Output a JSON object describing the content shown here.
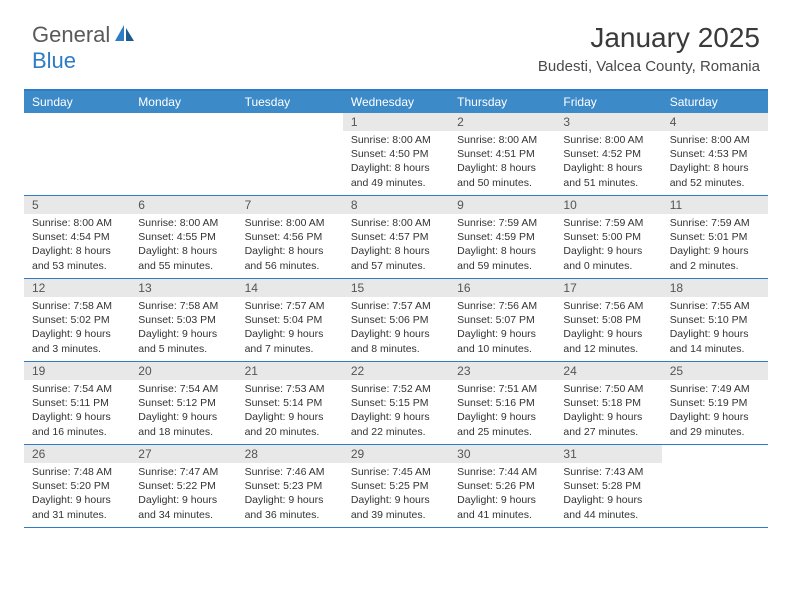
{
  "brand": {
    "part1": "General",
    "part2": "Blue",
    "color_text": "#5a5a5a",
    "color_blue": "#2d7cc5"
  },
  "title": "January 2025",
  "location": "Budesti, Valcea County, Romania",
  "colors": {
    "header_bg": "#3d8ac9",
    "border": "#2d7cc5",
    "daynum_bg": "#e8e8e8",
    "text": "#333333"
  },
  "weekdays": [
    "Sunday",
    "Monday",
    "Tuesday",
    "Wednesday",
    "Thursday",
    "Friday",
    "Saturday"
  ],
  "weeks": [
    [
      {
        "day": "",
        "sunrise": "",
        "sunset": "",
        "daylight1": "",
        "daylight2": ""
      },
      {
        "day": "",
        "sunrise": "",
        "sunset": "",
        "daylight1": "",
        "daylight2": ""
      },
      {
        "day": "",
        "sunrise": "",
        "sunset": "",
        "daylight1": "",
        "daylight2": ""
      },
      {
        "day": "1",
        "sunrise": "Sunrise: 8:00 AM",
        "sunset": "Sunset: 4:50 PM",
        "daylight1": "Daylight: 8 hours",
        "daylight2": "and 49 minutes."
      },
      {
        "day": "2",
        "sunrise": "Sunrise: 8:00 AM",
        "sunset": "Sunset: 4:51 PM",
        "daylight1": "Daylight: 8 hours",
        "daylight2": "and 50 minutes."
      },
      {
        "day": "3",
        "sunrise": "Sunrise: 8:00 AM",
        "sunset": "Sunset: 4:52 PM",
        "daylight1": "Daylight: 8 hours",
        "daylight2": "and 51 minutes."
      },
      {
        "day": "4",
        "sunrise": "Sunrise: 8:00 AM",
        "sunset": "Sunset: 4:53 PM",
        "daylight1": "Daylight: 8 hours",
        "daylight2": "and 52 minutes."
      }
    ],
    [
      {
        "day": "5",
        "sunrise": "Sunrise: 8:00 AM",
        "sunset": "Sunset: 4:54 PM",
        "daylight1": "Daylight: 8 hours",
        "daylight2": "and 53 minutes."
      },
      {
        "day": "6",
        "sunrise": "Sunrise: 8:00 AM",
        "sunset": "Sunset: 4:55 PM",
        "daylight1": "Daylight: 8 hours",
        "daylight2": "and 55 minutes."
      },
      {
        "day": "7",
        "sunrise": "Sunrise: 8:00 AM",
        "sunset": "Sunset: 4:56 PM",
        "daylight1": "Daylight: 8 hours",
        "daylight2": "and 56 minutes."
      },
      {
        "day": "8",
        "sunrise": "Sunrise: 8:00 AM",
        "sunset": "Sunset: 4:57 PM",
        "daylight1": "Daylight: 8 hours",
        "daylight2": "and 57 minutes."
      },
      {
        "day": "9",
        "sunrise": "Sunrise: 7:59 AM",
        "sunset": "Sunset: 4:59 PM",
        "daylight1": "Daylight: 8 hours",
        "daylight2": "and 59 minutes."
      },
      {
        "day": "10",
        "sunrise": "Sunrise: 7:59 AM",
        "sunset": "Sunset: 5:00 PM",
        "daylight1": "Daylight: 9 hours",
        "daylight2": "and 0 minutes."
      },
      {
        "day": "11",
        "sunrise": "Sunrise: 7:59 AM",
        "sunset": "Sunset: 5:01 PM",
        "daylight1": "Daylight: 9 hours",
        "daylight2": "and 2 minutes."
      }
    ],
    [
      {
        "day": "12",
        "sunrise": "Sunrise: 7:58 AM",
        "sunset": "Sunset: 5:02 PM",
        "daylight1": "Daylight: 9 hours",
        "daylight2": "and 3 minutes."
      },
      {
        "day": "13",
        "sunrise": "Sunrise: 7:58 AM",
        "sunset": "Sunset: 5:03 PM",
        "daylight1": "Daylight: 9 hours",
        "daylight2": "and 5 minutes."
      },
      {
        "day": "14",
        "sunrise": "Sunrise: 7:57 AM",
        "sunset": "Sunset: 5:04 PM",
        "daylight1": "Daylight: 9 hours",
        "daylight2": "and 7 minutes."
      },
      {
        "day": "15",
        "sunrise": "Sunrise: 7:57 AM",
        "sunset": "Sunset: 5:06 PM",
        "daylight1": "Daylight: 9 hours",
        "daylight2": "and 8 minutes."
      },
      {
        "day": "16",
        "sunrise": "Sunrise: 7:56 AM",
        "sunset": "Sunset: 5:07 PM",
        "daylight1": "Daylight: 9 hours",
        "daylight2": "and 10 minutes."
      },
      {
        "day": "17",
        "sunrise": "Sunrise: 7:56 AM",
        "sunset": "Sunset: 5:08 PM",
        "daylight1": "Daylight: 9 hours",
        "daylight2": "and 12 minutes."
      },
      {
        "day": "18",
        "sunrise": "Sunrise: 7:55 AM",
        "sunset": "Sunset: 5:10 PM",
        "daylight1": "Daylight: 9 hours",
        "daylight2": "and 14 minutes."
      }
    ],
    [
      {
        "day": "19",
        "sunrise": "Sunrise: 7:54 AM",
        "sunset": "Sunset: 5:11 PM",
        "daylight1": "Daylight: 9 hours",
        "daylight2": "and 16 minutes."
      },
      {
        "day": "20",
        "sunrise": "Sunrise: 7:54 AM",
        "sunset": "Sunset: 5:12 PM",
        "daylight1": "Daylight: 9 hours",
        "daylight2": "and 18 minutes."
      },
      {
        "day": "21",
        "sunrise": "Sunrise: 7:53 AM",
        "sunset": "Sunset: 5:14 PM",
        "daylight1": "Daylight: 9 hours",
        "daylight2": "and 20 minutes."
      },
      {
        "day": "22",
        "sunrise": "Sunrise: 7:52 AM",
        "sunset": "Sunset: 5:15 PM",
        "daylight1": "Daylight: 9 hours",
        "daylight2": "and 22 minutes."
      },
      {
        "day": "23",
        "sunrise": "Sunrise: 7:51 AM",
        "sunset": "Sunset: 5:16 PM",
        "daylight1": "Daylight: 9 hours",
        "daylight2": "and 25 minutes."
      },
      {
        "day": "24",
        "sunrise": "Sunrise: 7:50 AM",
        "sunset": "Sunset: 5:18 PM",
        "daylight1": "Daylight: 9 hours",
        "daylight2": "and 27 minutes."
      },
      {
        "day": "25",
        "sunrise": "Sunrise: 7:49 AM",
        "sunset": "Sunset: 5:19 PM",
        "daylight1": "Daylight: 9 hours",
        "daylight2": "and 29 minutes."
      }
    ],
    [
      {
        "day": "26",
        "sunrise": "Sunrise: 7:48 AM",
        "sunset": "Sunset: 5:20 PM",
        "daylight1": "Daylight: 9 hours",
        "daylight2": "and 31 minutes."
      },
      {
        "day": "27",
        "sunrise": "Sunrise: 7:47 AM",
        "sunset": "Sunset: 5:22 PM",
        "daylight1": "Daylight: 9 hours",
        "daylight2": "and 34 minutes."
      },
      {
        "day": "28",
        "sunrise": "Sunrise: 7:46 AM",
        "sunset": "Sunset: 5:23 PM",
        "daylight1": "Daylight: 9 hours",
        "daylight2": "and 36 minutes."
      },
      {
        "day": "29",
        "sunrise": "Sunrise: 7:45 AM",
        "sunset": "Sunset: 5:25 PM",
        "daylight1": "Daylight: 9 hours",
        "daylight2": "and 39 minutes."
      },
      {
        "day": "30",
        "sunrise": "Sunrise: 7:44 AM",
        "sunset": "Sunset: 5:26 PM",
        "daylight1": "Daylight: 9 hours",
        "daylight2": "and 41 minutes."
      },
      {
        "day": "31",
        "sunrise": "Sunrise: 7:43 AM",
        "sunset": "Sunset: 5:28 PM",
        "daylight1": "Daylight: 9 hours",
        "daylight2": "and 44 minutes."
      },
      {
        "day": "",
        "sunrise": "",
        "sunset": "",
        "daylight1": "",
        "daylight2": ""
      }
    ]
  ]
}
